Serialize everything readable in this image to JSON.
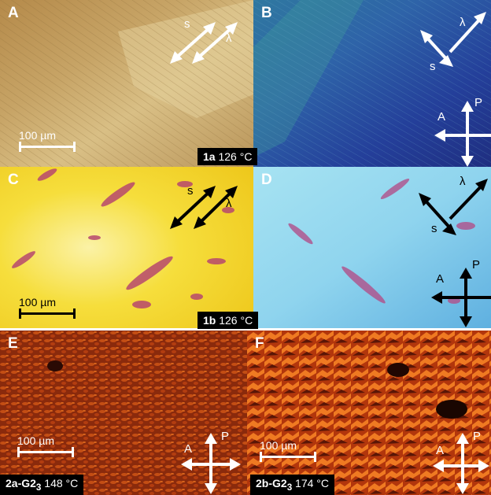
{
  "panels": {
    "A": {
      "letter": "A",
      "scale": "100 µm",
      "s_label": "s",
      "lambda_label": "λ"
    },
    "B": {
      "letter": "B",
      "s_label": "s",
      "lambda_label": "λ",
      "a_label": "A",
      "p_label": "P"
    },
    "C": {
      "letter": "C",
      "scale": "100 µm",
      "s_label": "s",
      "lambda_label": "λ"
    },
    "D": {
      "letter": "D",
      "s_label": "s",
      "lambda_label": "λ",
      "a_label": "A",
      "p_label": "P"
    },
    "E": {
      "letter": "E",
      "scale": "100 µm",
      "a_label": "A",
      "p_label": "P"
    },
    "F": {
      "letter": "F",
      "scale": "100 µm",
      "a_label": "A",
      "p_label": "P"
    }
  },
  "captions": {
    "row1": {
      "bold": "1a",
      "rest": " 126 °C"
    },
    "row2": {
      "bold": "1b",
      "rest": " 126 °C"
    },
    "row3_left": {
      "bold": "2a-G2",
      "sub": "3",
      "rest": " 148 °C"
    },
    "row3_right": {
      "bold": "2b-G2",
      "sub": "3",
      "rest": " 174 °C"
    }
  }
}
